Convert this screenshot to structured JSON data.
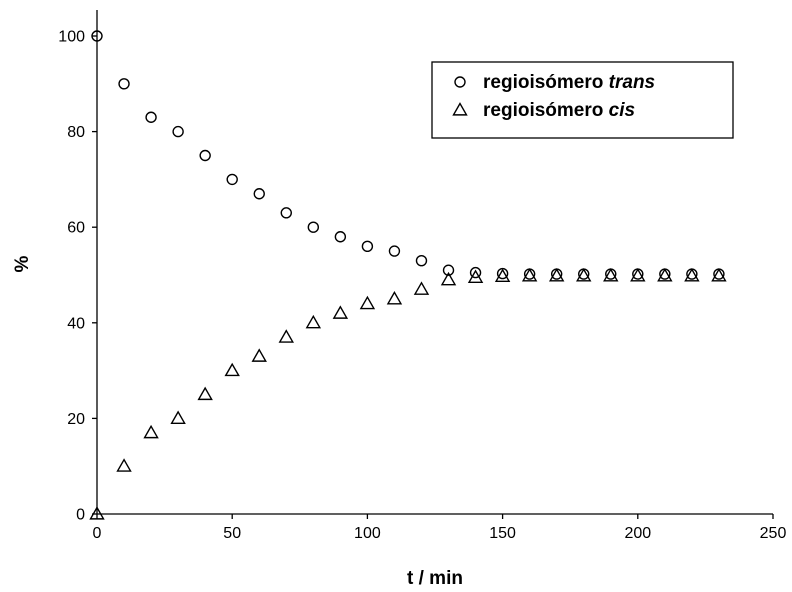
{
  "chart_data": {
    "type": "scatter",
    "xlabel": "t / min",
    "ylabel": "%",
    "xlim": [
      0,
      250
    ],
    "ylim": [
      0,
      105
    ],
    "xticks": [
      0,
      50,
      100,
      150,
      200,
      250
    ],
    "yticks": [
      0,
      20,
      40,
      60,
      80,
      100
    ],
    "grid": false,
    "legend_position": "top-right",
    "series": [
      {
        "name": "regioisómero trans",
        "name_plain": "regioisómero ",
        "name_italic": "trans",
        "marker": "circle",
        "x": [
          0,
          10,
          20,
          30,
          40,
          50,
          60,
          70,
          80,
          90,
          100,
          110,
          120,
          130,
          140,
          150,
          160,
          170,
          180,
          190,
          200,
          210,
          220,
          230
        ],
        "y": [
          100,
          90,
          83,
          80,
          75,
          70,
          67,
          63,
          60,
          58,
          56,
          55,
          53,
          51,
          50.5,
          50.3,
          50.2,
          50.2,
          50.2,
          50.2,
          50.2,
          50.2,
          50.2,
          50.2
        ]
      },
      {
        "name": "regioisómero cis",
        "name_plain": "regioisómero ",
        "name_italic": "cis",
        "marker": "triangle",
        "x": [
          0,
          10,
          20,
          30,
          40,
          50,
          60,
          70,
          80,
          90,
          100,
          110,
          120,
          130,
          140,
          150,
          160,
          170,
          180,
          190,
          200,
          210,
          220,
          230
        ],
        "y": [
          0,
          10,
          17,
          20,
          25,
          30,
          33,
          37,
          40,
          42,
          44,
          45,
          47,
          49,
          49.5,
          49.7,
          49.8,
          49.8,
          49.8,
          49.8,
          49.8,
          49.8,
          49.8,
          49.8
        ]
      }
    ]
  }
}
